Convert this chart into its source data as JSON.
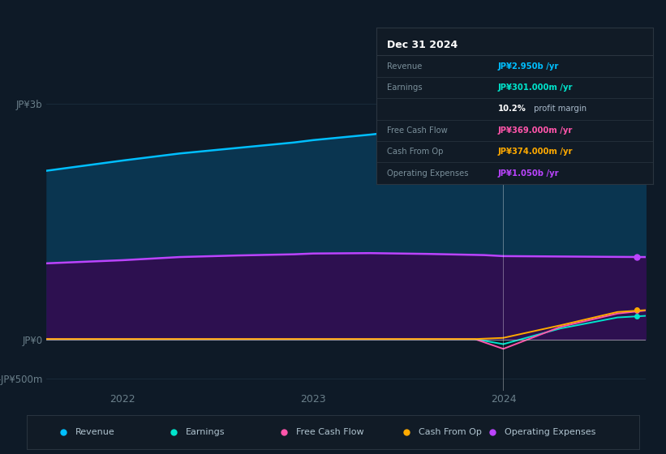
{
  "background_color": "#0e1a27",
  "plot_bg_color": "#0e1a27",
  "info_box_bg": "#111b26",
  "info_box_border": "#2a3540",
  "ylim": [
    -650000000,
    3400000000
  ],
  "xmin": 2021.6,
  "xmax": 2024.75,
  "vline_x": 2024.0,
  "series": {
    "revenue": {
      "label": "Revenue",
      "color": "#00bfff",
      "fill_color_top": "#0a3550",
      "values_x": [
        2021.6,
        2022.0,
        2022.3,
        2022.6,
        2022.9,
        2023.0,
        2023.3,
        2023.6,
        2023.9,
        2024.0,
        2024.3,
        2024.6,
        2024.75
      ],
      "values_y": [
        2150000000,
        2280000000,
        2370000000,
        2440000000,
        2510000000,
        2540000000,
        2610000000,
        2690000000,
        2760000000,
        2820000000,
        2870000000,
        2930000000,
        2950000000
      ]
    },
    "operating_expenses": {
      "label": "Operating Expenses",
      "color": "#bb44ff",
      "fill_color": "#2d1050",
      "values_x": [
        2021.6,
        2022.0,
        2022.3,
        2022.6,
        2022.9,
        2023.0,
        2023.3,
        2023.6,
        2023.9,
        2024.0,
        2024.3,
        2024.6,
        2024.75
      ],
      "values_y": [
        970000000,
        1010000000,
        1050000000,
        1070000000,
        1085000000,
        1095000000,
        1100000000,
        1090000000,
        1075000000,
        1062000000,
        1057000000,
        1052000000,
        1050000000
      ]
    },
    "earnings": {
      "label": "Earnings",
      "color": "#00e5cc",
      "values_x": [
        2021.6,
        2022.0,
        2022.5,
        2023.0,
        2023.5,
        2023.85,
        2024.0,
        2024.3,
        2024.6,
        2024.75
      ],
      "values_y": [
        5000000,
        5000000,
        5000000,
        5000000,
        5000000,
        5000000,
        -60000000,
        140000000,
        280000000,
        301000000
      ]
    },
    "free_cash_flow": {
      "label": "Free Cash Flow",
      "color": "#ff55aa",
      "values_x": [
        2021.6,
        2022.0,
        2022.5,
        2023.0,
        2023.5,
        2023.85,
        2024.0,
        2024.3,
        2024.6,
        2024.75
      ],
      "values_y": [
        5000000,
        5000000,
        5000000,
        5000000,
        5000000,
        5000000,
        -120000000,
        160000000,
        330000000,
        369000000
      ]
    },
    "cash_from_op": {
      "label": "Cash From Op",
      "color": "#ffaa00",
      "values_x": [
        2021.6,
        2022.0,
        2022.5,
        2023.0,
        2023.5,
        2023.85,
        2024.0,
        2024.3,
        2024.6,
        2024.75
      ],
      "values_y": [
        5000000,
        5000000,
        5000000,
        5000000,
        5000000,
        5000000,
        20000000,
        180000000,
        350000000,
        374000000
      ]
    }
  },
  "ytick_positions": [
    -500000000,
    0,
    3000000000
  ],
  "ytick_labels": [
    "-JP¥500m",
    "JP¥0",
    "JP¥3b"
  ],
  "xtick_positions": [
    2022.0,
    2023.0,
    2024.0
  ],
  "xtick_labels": [
    "2022",
    "2023",
    "2024"
  ],
  "tick_color": "#6a7f8a",
  "grid_color": "#1a2d3d",
  "zero_line_color": "#cccccc",
  "info_box": {
    "title": "Dec 31 2024",
    "rows": [
      {
        "label": "Revenue",
        "value": "JP¥2.950b /yr",
        "value_color": "#00bfff"
      },
      {
        "label": "Earnings",
        "value": "JP¥301.000m /yr",
        "value_color": "#00e5cc"
      },
      {
        "label": "",
        "value": "10.2%",
        "value_color": "#ffffff",
        "suffix": " profit margin",
        "suffix_color": "#aabbcc"
      },
      {
        "label": "Free Cash Flow",
        "value": "JP¥369.000m /yr",
        "value_color": "#ff55aa"
      },
      {
        "label": "Cash From Op",
        "value": "JP¥374.000m /yr",
        "value_color": "#ffaa00"
      },
      {
        "label": "Operating Expenses",
        "value": "JP¥1.050b /yr",
        "value_color": "#bb44ff"
      }
    ]
  },
  "legend": [
    {
      "label": "Revenue",
      "color": "#00bfff"
    },
    {
      "label": "Earnings",
      "color": "#00e5cc"
    },
    {
      "label": "Free Cash Flow",
      "color": "#ff55aa"
    },
    {
      "label": "Cash From Op",
      "color": "#ffaa00"
    },
    {
      "label": "Operating Expenses",
      "color": "#bb44ff"
    }
  ]
}
